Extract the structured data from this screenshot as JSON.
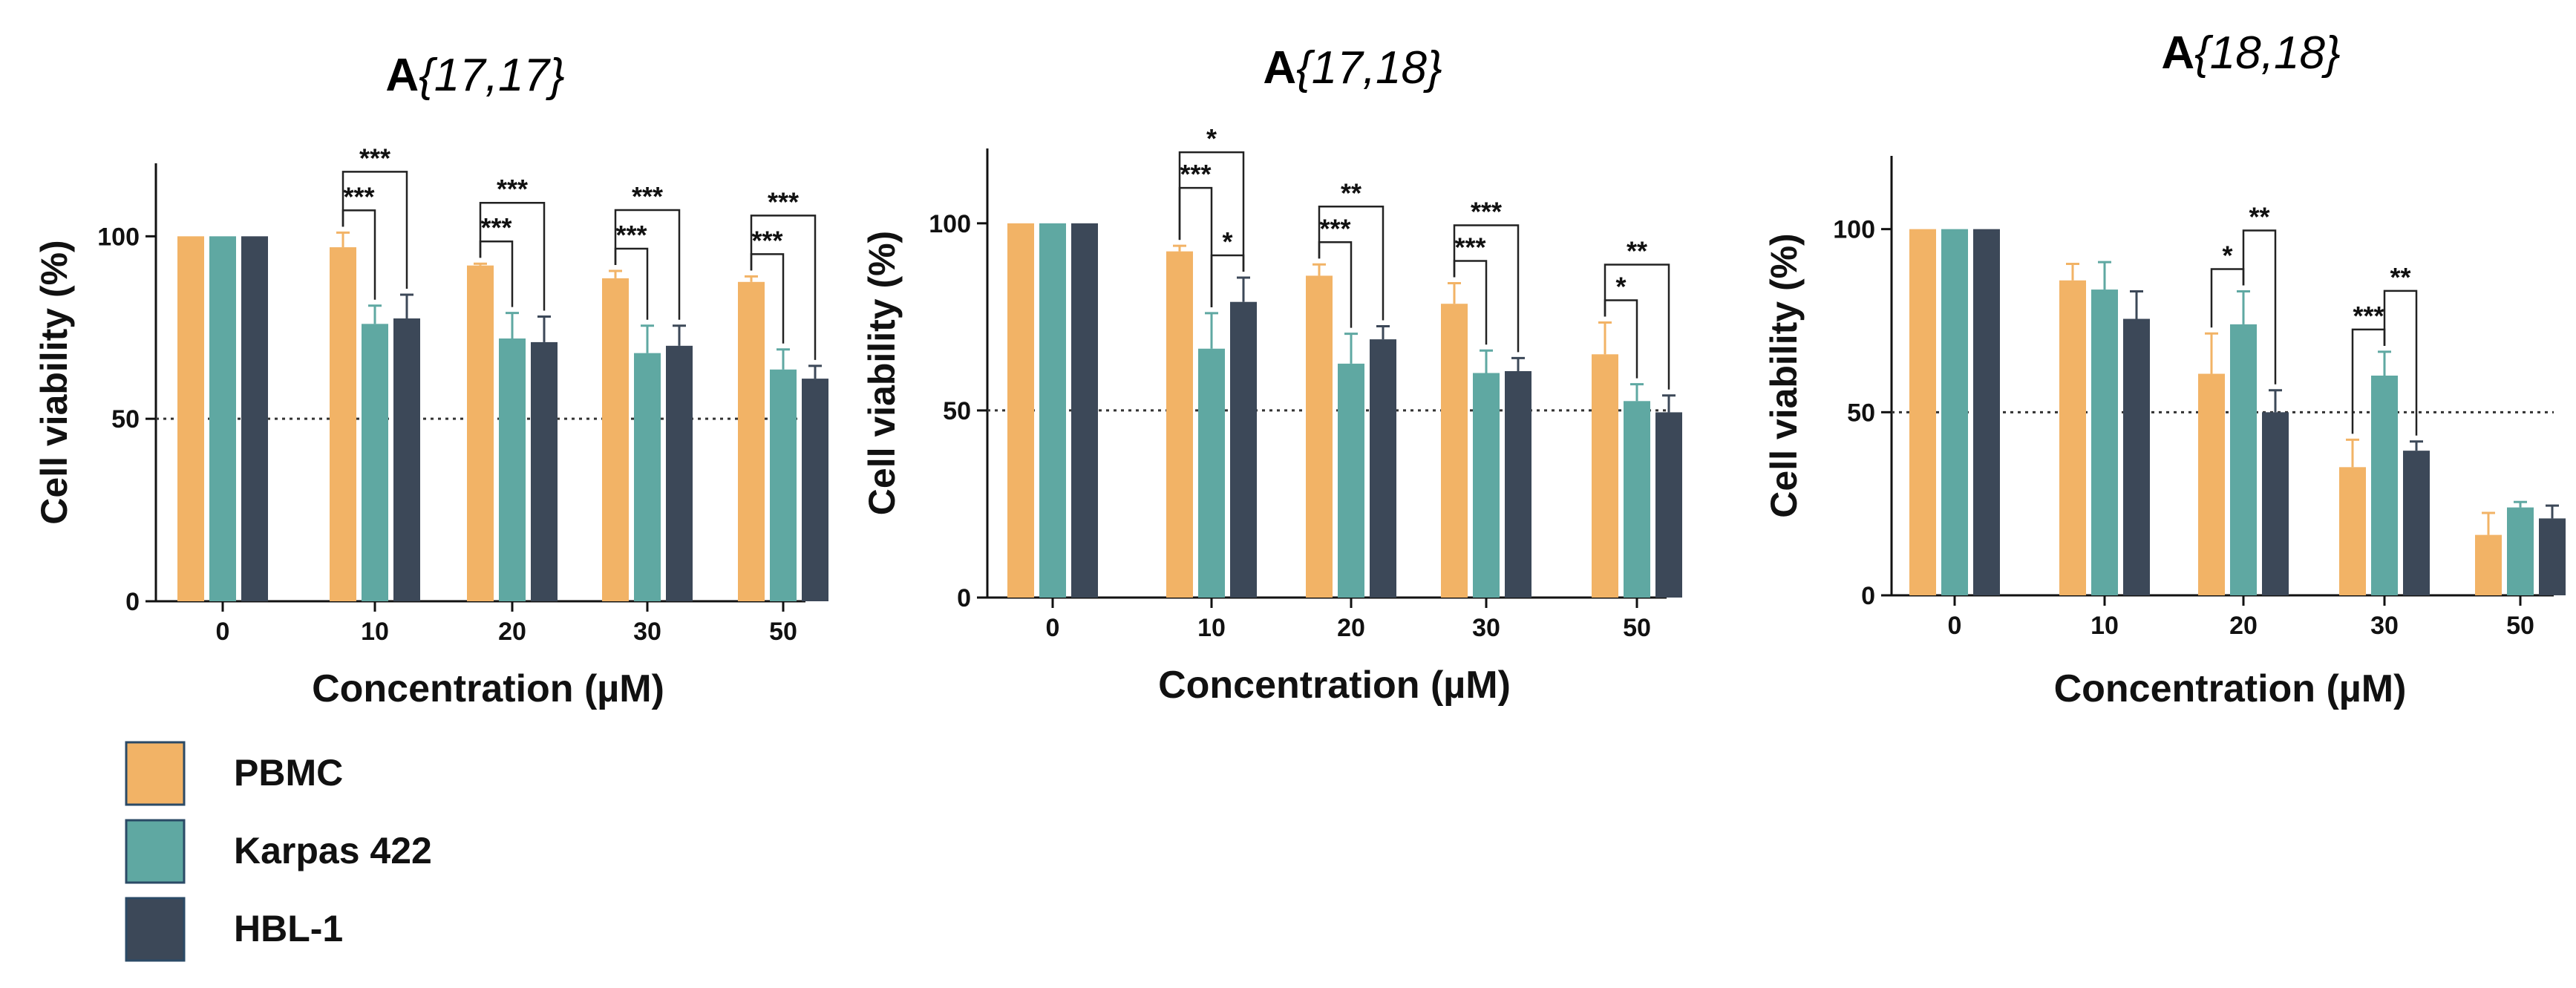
{
  "colors": {
    "PBMC": "#F2B366",
    "Karpas 422": "#5FA8A2",
    "HBL-1": "#3C4858"
  },
  "legend": [
    {
      "name": "PBMC",
      "color": "#F2B366"
    },
    {
      "name": "Karpas 422",
      "color": "#5FA8A2"
    },
    {
      "name": "HBL-1",
      "color": "#3C4858"
    }
  ],
  "chart_data": [
    {
      "type": "bar",
      "title_prefix": "A",
      "title_italic": "{17,17}",
      "xlabel": "Concentration (µM)",
      "ylabel": "Cell viability (%)",
      "ylim": [
        0,
        120
      ],
      "yticks": [
        "0",
        "50",
        "100"
      ],
      "reference_line": 50,
      "categories": [
        "0",
        "10",
        "20",
        "30",
        "50"
      ],
      "series": [
        {
          "name": "PBMC",
          "values": [
            100,
            97,
            92,
            88.5,
            87.5
          ],
          "errors": [
            0,
            4,
            0.5,
            2,
            1.5
          ]
        },
        {
          "name": "Karpas 422",
          "values": [
            100,
            76,
            72,
            68,
            63.5
          ],
          "errors": [
            0,
            5,
            7,
            7.5,
            5.5
          ]
        },
        {
          "name": "HBL-1",
          "values": [
            100,
            77.5,
            71,
            70,
            61
          ],
          "errors": [
            0,
            6.5,
            7,
            5.5,
            3.5
          ]
        }
      ],
      "significance": [
        {
          "cat": 1,
          "from": 0,
          "to": 1,
          "label": "***",
          "level": 0
        },
        {
          "cat": 1,
          "from": 0,
          "to": 2,
          "label": "***",
          "level": 1
        },
        {
          "cat": 2,
          "from": 0,
          "to": 1,
          "label": "***",
          "level": 0
        },
        {
          "cat": 2,
          "from": 0,
          "to": 2,
          "label": "***",
          "level": 1
        },
        {
          "cat": 3,
          "from": 0,
          "to": 1,
          "label": "***",
          "level": 0
        },
        {
          "cat": 3,
          "from": 0,
          "to": 2,
          "label": "***",
          "level": 1
        },
        {
          "cat": 4,
          "from": 0,
          "to": 1,
          "label": "***",
          "level": 0
        },
        {
          "cat": 4,
          "from": 0,
          "to": 2,
          "label": "***",
          "level": 1
        }
      ]
    },
    {
      "type": "bar",
      "title_prefix": "A",
      "title_italic": "{17,18}",
      "xlabel": "Concentration (µM)",
      "ylabel": "Cell viability (%)",
      "ylim": [
        0,
        120
      ],
      "yticks": [
        "0",
        "50",
        "100"
      ],
      "reference_line": 50,
      "categories": [
        "0",
        "10",
        "20",
        "30",
        "50"
      ],
      "series": [
        {
          "name": "PBMC",
          "values": [
            100,
            92.5,
            86,
            78.5,
            65
          ],
          "errors": [
            0,
            1.5,
            3,
            5.5,
            8.5
          ]
        },
        {
          "name": "Karpas 422",
          "values": [
            100,
            66.5,
            62.5,
            60,
            52.5
          ],
          "errors": [
            0,
            9.5,
            8,
            6,
            4.5
          ]
        },
        {
          "name": "HBL-1",
          "values": [
            100,
            79,
            69,
            60.5,
            49.5
          ],
          "errors": [
            0,
            6.5,
            3.5,
            3.5,
            4.5
          ]
        }
      ],
      "significance": [
        {
          "cat": 1,
          "from": 1,
          "to": 2,
          "label": "*",
          "level": 0
        },
        {
          "cat": 1,
          "from": 0,
          "to": 1,
          "label": "***",
          "level": 1
        },
        {
          "cat": 1,
          "from": 0,
          "to": 2,
          "label": "*",
          "level": 2
        },
        {
          "cat": 2,
          "from": 0,
          "to": 1,
          "label": "***",
          "level": 0
        },
        {
          "cat": 2,
          "from": 0,
          "to": 2,
          "label": "**",
          "level": 1
        },
        {
          "cat": 3,
          "from": 0,
          "to": 1,
          "label": "***",
          "level": 0
        },
        {
          "cat": 3,
          "from": 0,
          "to": 2,
          "label": "***",
          "level": 1
        },
        {
          "cat": 4,
          "from": 0,
          "to": 1,
          "label": "*",
          "level": 0
        },
        {
          "cat": 4,
          "from": 0,
          "to": 2,
          "label": "**",
          "level": 1
        }
      ]
    },
    {
      "type": "bar",
      "title_prefix": "A",
      "title_italic": "{18,18}",
      "xlabel": "Concentration (µM)",
      "ylabel": "Cell viability (%)",
      "ylim": [
        0,
        120
      ],
      "yticks": [
        "0",
        "50",
        "100"
      ],
      "reference_line": 50,
      "categories": [
        "0",
        "10",
        "20",
        "30",
        "50"
      ],
      "series": [
        {
          "name": "PBMC",
          "values": [
            100,
            86,
            60.5,
            35,
            16.5
          ],
          "errors": [
            0,
            4.5,
            11,
            7.5,
            6
          ]
        },
        {
          "name": "Karpas 422",
          "values": [
            100,
            83.5,
            74,
            60,
            24
          ],
          "errors": [
            0,
            7.5,
            9,
            6.5,
            1.5
          ]
        },
        {
          "name": "HBL-1",
          "values": [
            100,
            75.5,
            50,
            39.5,
            21
          ],
          "errors": [
            0,
            7.5,
            6,
            2.5,
            3.5
          ]
        }
      ],
      "significance": [
        {
          "cat": 2,
          "from": 0,
          "to": 1,
          "label": "*",
          "level": 0
        },
        {
          "cat": 2,
          "from": 1,
          "to": 2,
          "label": "**",
          "level": 1
        },
        {
          "cat": 3,
          "from": 0,
          "to": 1,
          "label": "***",
          "level": 0
        },
        {
          "cat": 3,
          "from": 1,
          "to": 2,
          "label": "**",
          "level": 1
        }
      ]
    }
  ]
}
